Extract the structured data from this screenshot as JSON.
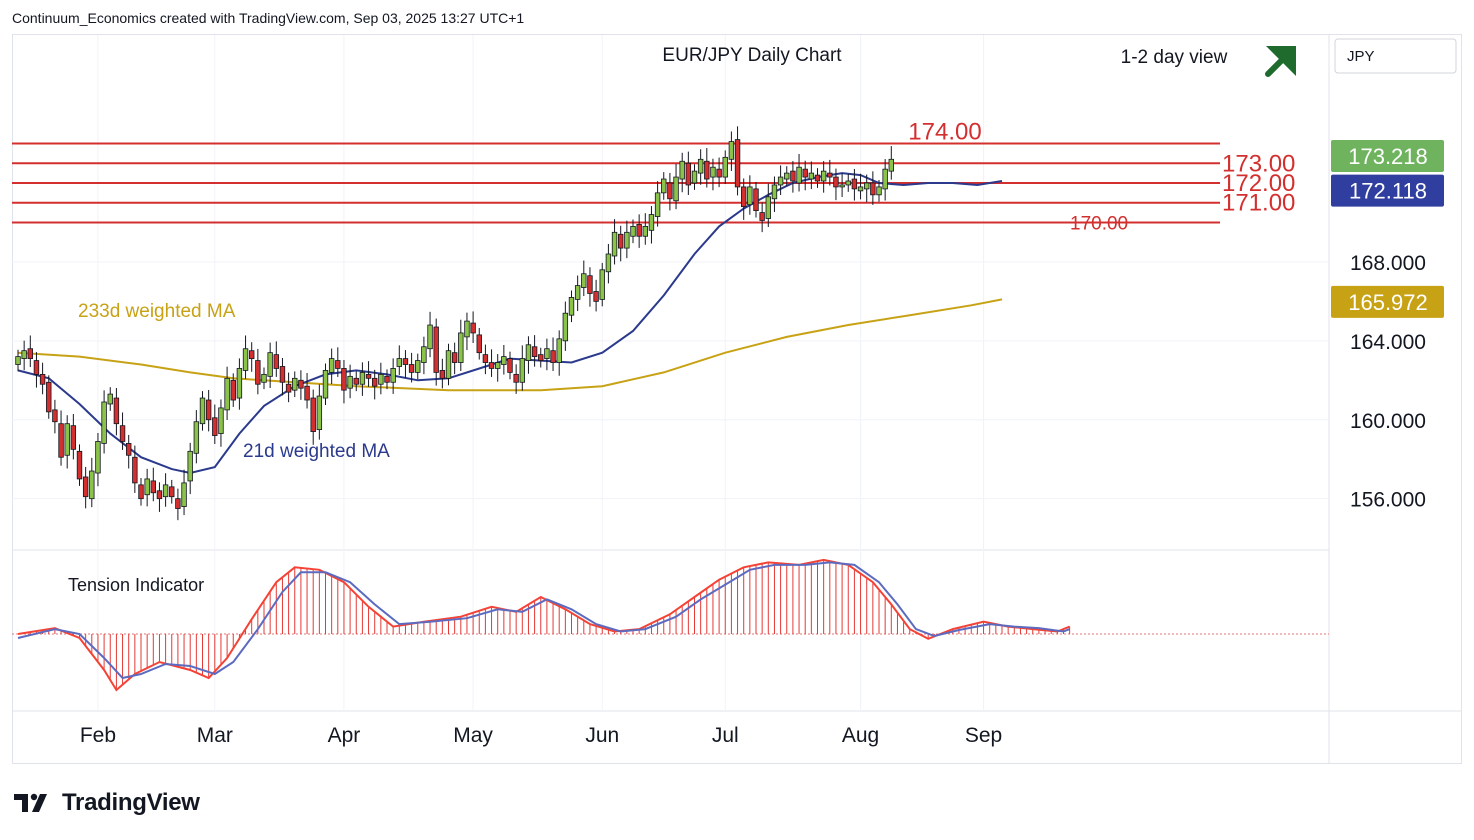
{
  "header": {
    "text": "Continuum_Economics created with TradingView.com, Sep 03, 2025 13:27 UTC+1"
  },
  "footer": {
    "brand": "TradingView",
    "logo_icon": "tradingview-logo-icon"
  },
  "chart_data": {
    "type": "candlestick",
    "title": "EUR/JPY Daily Chart",
    "view_label": "1-2 day view",
    "view_icon": "up-right-arrow-icon",
    "currency": "JPY",
    "ylim": [
      153.5,
      179.5
    ],
    "y_ticks": [
      "168.000",
      "164.000",
      "160.000",
      "156.000"
    ],
    "y_tick_values": [
      168,
      164,
      160,
      156
    ],
    "x_ticks": [
      {
        "label": "Feb",
        "index": 13
      },
      {
        "label": "Mar",
        "index": 32
      },
      {
        "label": "Apr",
        "index": 53
      },
      {
        "label": "May",
        "index": 74
      },
      {
        "label": "Jun",
        "index": 95
      },
      {
        "label": "Jul",
        "index": 115
      },
      {
        "label": "Aug",
        "index": 137
      },
      {
        "label": "Sep",
        "index": 157
      }
    ],
    "price_badges": [
      {
        "label": "173.218",
        "value": 173.218,
        "color": "#6fb35f"
      },
      {
        "label": "172.118",
        "value": 172.118,
        "color": "#303f9f"
      },
      {
        "label": "165.972",
        "value": 165.972,
        "color": "#c8a215"
      }
    ],
    "levels": [
      {
        "label": "174.00",
        "value": 174.0
      },
      {
        "label": "173.00",
        "value": 173.0
      },
      {
        "label": "172.00",
        "value": 172.0
      },
      {
        "label": "171.00",
        "value": 171.0
      },
      {
        "label": "170.00",
        "value": 170.0
      }
    ],
    "ma_labels": {
      "ma233": "233d weighted MA",
      "ma21": "21d weighted MA"
    },
    "ma233": [
      [
        0,
        163.4
      ],
      [
        10,
        163.2
      ],
      [
        20,
        162.8
      ],
      [
        28,
        162.4
      ],
      [
        35,
        162.1
      ],
      [
        45,
        161.9
      ],
      [
        55,
        161.7
      ],
      [
        70,
        161.5
      ],
      [
        85,
        161.5
      ],
      [
        95,
        161.7
      ],
      [
        105,
        162.4
      ],
      [
        115,
        163.4
      ],
      [
        125,
        164.2
      ],
      [
        135,
        164.8
      ],
      [
        145,
        165.3
      ],
      [
        155,
        165.8
      ],
      [
        160,
        166.1
      ]
    ],
    "ma21": [
      [
        0,
        162.5
      ],
      [
        5,
        162.1
      ],
      [
        10,
        160.8
      ],
      [
        15,
        159.3
      ],
      [
        20,
        158.1
      ],
      [
        25,
        157.5
      ],
      [
        28,
        157.3
      ],
      [
        32,
        157.6
      ],
      [
        36,
        159.3
      ],
      [
        40,
        160.7
      ],
      [
        45,
        161.7
      ],
      [
        50,
        162.3
      ],
      [
        55,
        162.5
      ],
      [
        60,
        162.3
      ],
      [
        65,
        162.0
      ],
      [
        70,
        162.1
      ],
      [
        75,
        162.6
      ],
      [
        80,
        163.1
      ],
      [
        85,
        163.0
      ],
      [
        90,
        162.9
      ],
      [
        95,
        163.4
      ],
      [
        100,
        164.5
      ],
      [
        105,
        166.3
      ],
      [
        110,
        168.4
      ],
      [
        114,
        169.8
      ],
      [
        118,
        170.7
      ],
      [
        122,
        171.4
      ],
      [
        126,
        172.0
      ],
      [
        130,
        172.3
      ],
      [
        134,
        172.5
      ],
      [
        137,
        172.4
      ],
      [
        140,
        172.0
      ],
      [
        144,
        171.9
      ],
      [
        148,
        172.0
      ],
      [
        152,
        172.0
      ],
      [
        156,
        171.9
      ],
      [
        160,
        172.1
      ]
    ],
    "candles": [
      [
        162.8,
        163.2
      ],
      [
        163.1,
        163.5
      ],
      [
        163.6,
        163.1
      ],
      [
        163.0,
        162.3
      ],
      [
        162.3,
        161.8
      ],
      [
        161.9,
        160.4
      ],
      [
        160.5,
        159.9
      ],
      [
        159.8,
        158.1
      ],
      [
        158.2,
        159.8
      ],
      [
        159.7,
        158.5
      ],
      [
        158.4,
        157.0
      ],
      [
        157.1,
        156.1
      ],
      [
        156.0,
        157.4
      ],
      [
        157.3,
        158.9
      ],
      [
        158.8,
        160.9
      ],
      [
        160.8,
        161.3
      ],
      [
        161.1,
        159.8
      ],
      [
        159.7,
        158.9
      ],
      [
        158.8,
        158.2
      ],
      [
        158.1,
        156.8
      ],
      [
        156.7,
        156.0
      ],
      [
        156.2,
        157.0
      ],
      [
        156.9,
        156.3
      ],
      [
        156.4,
        156.0
      ],
      [
        156.1,
        156.7
      ],
      [
        156.6,
        156.1
      ],
      [
        156.0,
        155.5
      ],
      [
        155.6,
        156.8
      ],
      [
        156.9,
        158.4
      ],
      [
        158.3,
        159.9
      ],
      [
        159.8,
        161.1
      ],
      [
        161.0,
        160.0
      ],
      [
        160.1,
        159.2
      ],
      [
        159.3,
        160.6
      ],
      [
        160.5,
        162.1
      ],
      [
        162.0,
        161.0
      ],
      [
        161.1,
        162.6
      ],
      [
        162.5,
        163.6
      ],
      [
        163.5,
        163.1
      ],
      [
        163.0,
        161.8
      ],
      [
        161.9,
        162.3
      ],
      [
        162.2,
        163.4
      ],
      [
        163.3,
        162.6
      ],
      [
        162.7,
        161.9
      ],
      [
        161.8,
        161.4
      ],
      [
        161.5,
        162.1
      ],
      [
        162.0,
        161.6
      ],
      [
        161.7,
        161.0
      ],
      [
        161.1,
        159.4
      ],
      [
        159.5,
        161.2
      ],
      [
        161.1,
        162.5
      ],
      [
        162.4,
        163.1
      ],
      [
        163.0,
        162.6
      ],
      [
        162.6,
        161.5
      ],
      [
        161.6,
        162.2
      ],
      [
        162.1,
        161.8
      ],
      [
        161.8,
        162.4
      ],
      [
        162.3,
        162.1
      ],
      [
        162.1,
        161.7
      ],
      [
        161.8,
        162.3
      ],
      [
        162.2,
        161.9
      ],
      [
        161.9,
        162.6
      ],
      [
        162.7,
        163.1
      ],
      [
        163.1,
        162.8
      ],
      [
        162.8,
        162.4
      ],
      [
        162.4,
        163.0
      ],
      [
        162.9,
        163.7
      ],
      [
        163.6,
        164.8
      ],
      [
        164.7,
        162.4
      ],
      [
        162.5,
        162.1
      ],
      [
        162.1,
        163.5
      ],
      [
        163.4,
        162.9
      ],
      [
        162.9,
        164.4
      ],
      [
        164.2,
        165.0
      ],
      [
        164.9,
        164.4
      ],
      [
        164.3,
        163.4
      ],
      [
        163.3,
        162.9
      ],
      [
        162.9,
        162.6
      ],
      [
        162.6,
        162.9
      ],
      [
        162.8,
        163.2
      ],
      [
        163.1,
        162.4
      ],
      [
        162.3,
        161.9
      ],
      [
        161.9,
        163.1
      ],
      [
        163.0,
        163.8
      ],
      [
        163.7,
        163.2
      ],
      [
        163.3,
        163.0
      ],
      [
        163.1,
        163.6
      ],
      [
        163.5,
        162.9
      ],
      [
        162.9,
        164.1
      ],
      [
        164.0,
        165.4
      ],
      [
        165.3,
        166.2
      ],
      [
        166.1,
        166.8
      ],
      [
        166.7,
        167.4
      ],
      [
        167.3,
        166.4
      ],
      [
        166.5,
        166.0
      ],
      [
        166.1,
        167.6
      ],
      [
        167.5,
        168.4
      ],
      [
        168.3,
        169.5
      ],
      [
        169.4,
        168.7
      ],
      [
        168.7,
        169.5
      ],
      [
        169.3,
        169.8
      ],
      [
        169.9,
        169.3
      ],
      [
        169.3,
        169.8
      ],
      [
        169.6,
        170.4
      ],
      [
        170.3,
        171.5
      ],
      [
        171.5,
        172.2
      ],
      [
        172.0,
        171.2
      ],
      [
        171.1,
        172.3
      ],
      [
        172.2,
        173.1
      ],
      [
        173.0,
        171.9
      ],
      [
        172.0,
        172.6
      ],
      [
        172.5,
        173.2
      ],
      [
        173.1,
        172.2
      ],
      [
        172.3,
        172.8
      ],
      [
        172.7,
        172.3
      ],
      [
        172.3,
        173.3
      ],
      [
        173.2,
        174.1
      ],
      [
        174.2,
        171.8
      ],
      [
        171.8,
        170.8
      ],
      [
        170.9,
        171.8
      ],
      [
        171.7,
        170.6
      ],
      [
        170.5,
        170.1
      ],
      [
        170.2,
        171.3
      ],
      [
        171.2,
        171.9
      ],
      [
        171.9,
        172.3
      ],
      [
        172.2,
        172.5
      ],
      [
        172.6,
        172.1
      ],
      [
        172.0,
        172.8
      ],
      [
        172.7,
        172.3
      ],
      [
        172.2,
        172.5
      ],
      [
        172.4,
        172.1
      ],
      [
        172.1,
        172.6
      ],
      [
        172.5,
        172.3
      ],
      [
        172.3,
        171.8
      ],
      [
        171.8,
        171.9
      ],
      [
        171.9,
        172.1
      ],
      [
        172.2,
        171.7
      ],
      [
        171.6,
        171.8
      ],
      [
        171.7,
        172.0
      ],
      [
        172.0,
        171.4
      ],
      [
        171.4,
        171.8
      ],
      [
        171.7,
        172.7
      ],
      [
        172.6,
        173.2
      ]
    ],
    "tension_indicator": {
      "label": "Tension Indicator",
      "ylim": [
        -1.8,
        1.6
      ],
      "red": [
        [
          0,
          0
        ],
        [
          6,
          0.12
        ],
        [
          10,
          -0.1
        ],
        [
          14,
          -0.9
        ],
        [
          16,
          -1.4
        ],
        [
          19,
          -1.0
        ],
        [
          23,
          -0.7
        ],
        [
          28,
          -0.9
        ],
        [
          31,
          -1.1
        ],
        [
          34,
          -0.6
        ],
        [
          38,
          0.3
        ],
        [
          42,
          1.05
        ],
        [
          45,
          1.35
        ],
        [
          49,
          1.3
        ],
        [
          53,
          1.05
        ],
        [
          57,
          0.55
        ],
        [
          61,
          0.15
        ],
        [
          66,
          0.25
        ],
        [
          72,
          0.35
        ],
        [
          77,
          0.55
        ],
        [
          81,
          0.45
        ],
        [
          85,
          0.75
        ],
        [
          89,
          0.5
        ],
        [
          93,
          0.2
        ],
        [
          97,
          0.05
        ],
        [
          101,
          0.1
        ],
        [
          106,
          0.4
        ],
        [
          110,
          0.75
        ],
        [
          114,
          1.1
        ],
        [
          118,
          1.35
        ],
        [
          122,
          1.45
        ],
        [
          127,
          1.4
        ],
        [
          131,
          1.5
        ],
        [
          135,
          1.4
        ],
        [
          139,
          1.05
        ],
        [
          142,
          0.6
        ],
        [
          145,
          0.1
        ],
        [
          148,
          -0.12
        ],
        [
          152,
          0.1
        ],
        [
          157,
          0.25
        ],
        [
          161,
          0.15
        ],
        [
          165,
          0.1
        ],
        [
          169,
          0.05
        ],
        [
          171,
          0.15
        ]
      ],
      "blue": [
        [
          0,
          -0.1
        ],
        [
          6,
          0.1
        ],
        [
          10,
          0.0
        ],
        [
          14,
          -0.6
        ],
        [
          17,
          -1.1
        ],
        [
          20,
          -1.0
        ],
        [
          24,
          -0.75
        ],
        [
          28,
          -0.8
        ],
        [
          32,
          -1.0
        ],
        [
          35,
          -0.7
        ],
        [
          39,
          0.1
        ],
        [
          43,
          0.85
        ],
        [
          46,
          1.25
        ],
        [
          50,
          1.25
        ],
        [
          54,
          1.05
        ],
        [
          58,
          0.6
        ],
        [
          62,
          0.2
        ],
        [
          67,
          0.25
        ],
        [
          73,
          0.32
        ],
        [
          78,
          0.5
        ],
        [
          82,
          0.45
        ],
        [
          86,
          0.7
        ],
        [
          90,
          0.5
        ],
        [
          94,
          0.2
        ],
        [
          98,
          0.05
        ],
        [
          102,
          0.1
        ],
        [
          107,
          0.35
        ],
        [
          111,
          0.7
        ],
        [
          115,
          1.0
        ],
        [
          119,
          1.3
        ],
        [
          123,
          1.4
        ],
        [
          128,
          1.4
        ],
        [
          132,
          1.45
        ],
        [
          136,
          1.4
        ],
        [
          140,
          1.05
        ],
        [
          143,
          0.6
        ],
        [
          146,
          0.1
        ],
        [
          149,
          -0.05
        ],
        [
          153,
          0.08
        ],
        [
          158,
          0.2
        ],
        [
          162,
          0.15
        ],
        [
          166,
          0.12
        ],
        [
          170,
          0.05
        ],
        [
          171,
          0.1
        ]
      ]
    }
  }
}
